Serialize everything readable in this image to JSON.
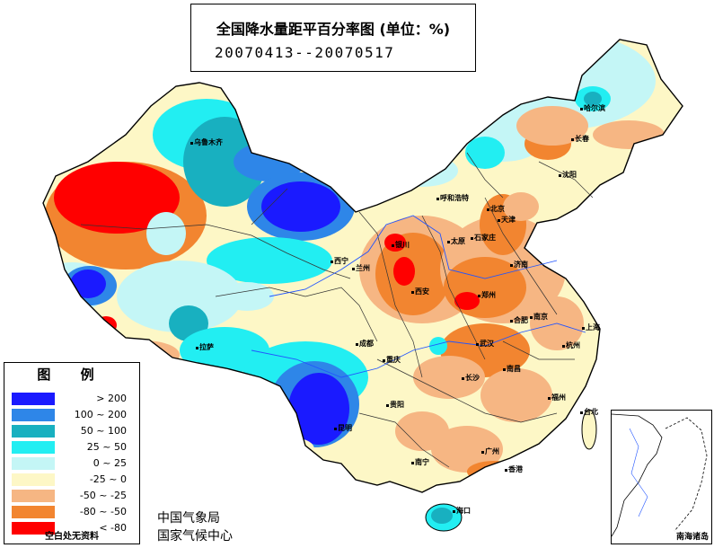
{
  "title": {
    "line1": "全国降水量距平百分率图 (单位：%)",
    "line2": "20070413--20070517"
  },
  "legend": {
    "title": "图 例",
    "items": [
      {
        "label": "> 200",
        "color": "#1a1aff"
      },
      {
        "label": "100 ~ 200",
        "color": "#2e86e8"
      },
      {
        "label": "50 ~ 100",
        "color": "#18b0c0"
      },
      {
        "label": "25 ~ 50",
        "color": "#22eef2"
      },
      {
        "label": "0 ~ 25",
        "color": "#c4f6f6"
      },
      {
        "label": "-25 ~ 0",
        "color": "#fdf7c6"
      },
      {
        "label": "-50 ~ -25",
        "color": "#f6b683"
      },
      {
        "label": "-80 ~ -50",
        "color": "#f28530"
      },
      {
        "label": "< -80",
        "color": "#ff0000"
      }
    ],
    "note": "空白处无资料"
  },
  "org": {
    "line1": "中国气象局",
    "line2": "国家气候中心"
  },
  "inset_label": "南海诸岛",
  "cities": [
    {
      "name": "乌鲁木齐",
      "id": "urumqi"
    },
    {
      "name": "哈尔滨",
      "id": "harbin"
    },
    {
      "name": "长春",
      "id": "changchun"
    },
    {
      "name": "沈阳",
      "id": "shenyang"
    },
    {
      "name": "呼和浩特",
      "id": "hohhot"
    },
    {
      "name": "北京",
      "id": "beijing"
    },
    {
      "name": "天津",
      "id": "tianjin"
    },
    {
      "name": "石家庄",
      "id": "shijiazhuang"
    },
    {
      "name": "太原",
      "id": "taiyuan"
    },
    {
      "name": "银川",
      "id": "yinchuan"
    },
    {
      "name": "济南",
      "id": "jinan"
    },
    {
      "name": "西宁",
      "id": "xining"
    },
    {
      "name": "兰州",
      "id": "lanzhou"
    },
    {
      "name": "西安",
      "id": "xian"
    },
    {
      "name": "郑州",
      "id": "zhengzhou"
    },
    {
      "name": "合肥",
      "id": "hefei"
    },
    {
      "name": "南京",
      "id": "nanjing"
    },
    {
      "name": "上海",
      "id": "shanghai"
    },
    {
      "name": "拉萨",
      "id": "lhasa"
    },
    {
      "name": "成都",
      "id": "chengdu"
    },
    {
      "name": "重庆",
      "id": "chongqing"
    },
    {
      "name": "武汉",
      "id": "wuhan"
    },
    {
      "name": "杭州",
      "id": "hangzhou"
    },
    {
      "name": "南昌",
      "id": "nanchang"
    },
    {
      "name": "长沙",
      "id": "changsha"
    },
    {
      "name": "贵阳",
      "id": "guiyang"
    },
    {
      "name": "福州",
      "id": "fuzhou"
    },
    {
      "name": "台北",
      "id": "taipei"
    },
    {
      "name": "昆明",
      "id": "kunming"
    },
    {
      "name": "南宁",
      "id": "nanning"
    },
    {
      "name": "广州",
      "id": "guangzhou"
    },
    {
      "name": "香港",
      "id": "hongkong"
    },
    {
      "name": "海口",
      "id": "haikou"
    }
  ]
}
